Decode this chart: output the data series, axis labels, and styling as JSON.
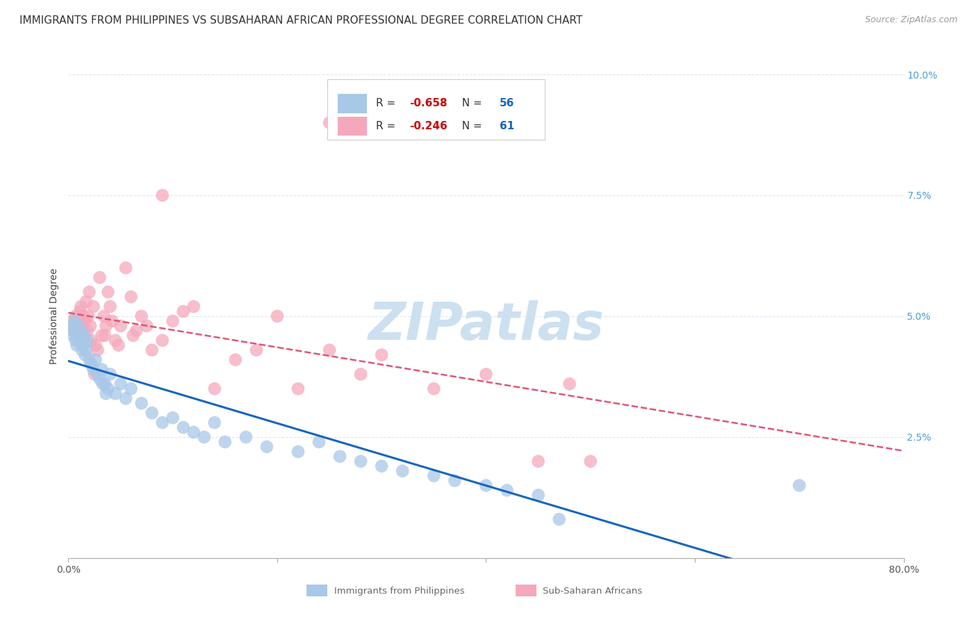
{
  "title": "IMMIGRANTS FROM PHILIPPINES VS SUBSAHARAN AFRICAN PROFESSIONAL DEGREE CORRELATION CHART",
  "source": "Source: ZipAtlas.com",
  "ylabel": "Professional Degree",
  "xmin": 0.0,
  "xmax": 80.0,
  "ymin": 0.0,
  "ymax": 10.0,
  "watermark": "ZIPatlas",
  "watermark_color": "#cce0f0",
  "blue_scatter_x": [
    0.3,
    0.4,
    0.5,
    0.6,
    0.7,
    0.8,
    0.9,
    1.0,
    1.1,
    1.2,
    1.3,
    1.4,
    1.5,
    1.6,
    1.7,
    1.8,
    2.0,
    2.2,
    2.4,
    2.6,
    2.8,
    3.0,
    3.2,
    3.5,
    3.8,
    4.0,
    4.5,
    5.0,
    5.5,
    6.0,
    7.0,
    8.0,
    9.0,
    10.0,
    11.0,
    12.0,
    13.0,
    14.0,
    15.0,
    17.0,
    19.0,
    22.0,
    24.0,
    26.0,
    28.0,
    30.0,
    32.0,
    35.0,
    37.0,
    40.0,
    42.0,
    45.0,
    47.0,
    70.0,
    3.3,
    3.6
  ],
  "blue_scatter_y": [
    4.8,
    4.6,
    4.7,
    4.9,
    4.5,
    4.4,
    4.8,
    4.6,
    4.5,
    4.7,
    4.3,
    4.4,
    4.6,
    4.2,
    4.3,
    4.5,
    4.1,
    4.0,
    3.9,
    4.1,
    3.8,
    3.7,
    3.9,
    3.6,
    3.5,
    3.8,
    3.4,
    3.6,
    3.3,
    3.5,
    3.2,
    3.0,
    2.8,
    2.9,
    2.7,
    2.6,
    2.5,
    2.8,
    2.4,
    2.5,
    2.3,
    2.2,
    2.4,
    2.1,
    2.0,
    1.9,
    1.8,
    1.7,
    1.6,
    1.5,
    1.4,
    1.3,
    0.8,
    1.5,
    3.6,
    3.4
  ],
  "pink_scatter_x": [
    0.3,
    0.4,
    0.5,
    0.6,
    0.7,
    0.8,
    0.9,
    1.0,
    1.1,
    1.2,
    1.3,
    1.4,
    1.5,
    1.6,
    1.7,
    1.8,
    1.9,
    2.0,
    2.1,
    2.2,
    2.4,
    2.6,
    2.8,
    3.0,
    3.2,
    3.4,
    3.6,
    3.8,
    4.0,
    4.2,
    4.5,
    5.0,
    5.5,
    6.0,
    6.5,
    7.0,
    8.0,
    9.0,
    10.0,
    11.0,
    12.0,
    14.0,
    16.0,
    18.0,
    20.0,
    22.0,
    25.0,
    28.0,
    30.0,
    35.0,
    40.0,
    45.0,
    48.0,
    2.5,
    3.5,
    4.8,
    6.2,
    7.5,
    9.0,
    25.0,
    50.0
  ],
  "pink_scatter_y": [
    4.8,
    4.9,
    4.7,
    4.8,
    5.0,
    4.6,
    4.7,
    4.9,
    5.1,
    5.2,
    4.8,
    5.0,
    4.6,
    4.9,
    5.3,
    4.7,
    5.0,
    5.5,
    4.8,
    4.5,
    5.2,
    4.4,
    4.3,
    5.8,
    4.6,
    5.0,
    4.8,
    5.5,
    5.2,
    4.9,
    4.5,
    4.8,
    6.0,
    5.4,
    4.7,
    5.0,
    4.3,
    4.5,
    4.9,
    5.1,
    5.2,
    3.5,
    4.1,
    4.3,
    5.0,
    3.5,
    4.3,
    3.8,
    4.2,
    3.5,
    3.8,
    2.0,
    3.6,
    3.8,
    4.6,
    4.4,
    4.6,
    4.8,
    7.5,
    9.0,
    2.0
  ],
  "blue_color": "#a8c8e8",
  "pink_color": "#f5a8bc",
  "blue_line_color": "#1565c0",
  "pink_line_color": "#e05575",
  "grid_color": "#dde8f0",
  "background_color": "#ffffff",
  "title_fontsize": 11,
  "source_fontsize": 9,
  "ylabel_fontsize": 10,
  "tick_fontsize": 10,
  "legend_fontsize": 11,
  "legend_r_color": "#cc0000",
  "legend_n_color": "#1565c0",
  "blue_R": "-0.658",
  "blue_N": "56",
  "pink_R": "-0.246",
  "pink_N": "61"
}
